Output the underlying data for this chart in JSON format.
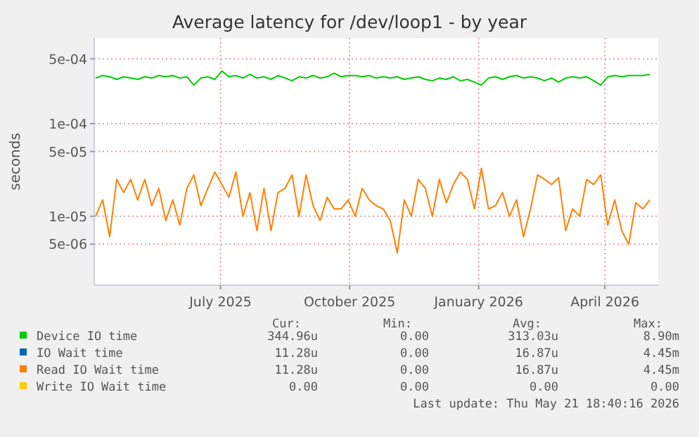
{
  "chart_data": {
    "type": "line",
    "title": "Average latency for /dev/loop1 - by year",
    "ylabel": "seconds",
    "log": "y",
    "grid": true,
    "legend": "bottom",
    "line_style": "solid",
    "marker": "none",
    "x": [
      "2025-04-03",
      "2025-04-08",
      "2025-04-13",
      "2025-04-18",
      "2025-04-23",
      "2025-04-28",
      "2025-05-03",
      "2025-05-08",
      "2025-05-13",
      "2025-05-18",
      "2025-05-23",
      "2025-05-28",
      "2025-06-02",
      "2025-06-07",
      "2025-06-12",
      "2025-06-17",
      "2025-06-22",
      "2025-06-27",
      "2025-07-02",
      "2025-07-07",
      "2025-07-12",
      "2025-07-17",
      "2025-07-22",
      "2025-07-27",
      "2025-08-01",
      "2025-08-06",
      "2025-08-11",
      "2025-08-16",
      "2025-08-21",
      "2025-08-26",
      "2025-08-31",
      "2025-09-05",
      "2025-09-10",
      "2025-09-15",
      "2025-09-20",
      "2025-09-25",
      "2025-09-30",
      "2025-10-05",
      "2025-10-10",
      "2025-10-15",
      "2025-10-20",
      "2025-10-25",
      "2025-10-30",
      "2025-11-04",
      "2025-11-09",
      "2025-11-14",
      "2025-11-19",
      "2025-11-24",
      "2025-11-29",
      "2025-12-04",
      "2025-12-09",
      "2025-12-14",
      "2025-12-19",
      "2025-12-24",
      "2025-12-29",
      "2026-01-03",
      "2026-01-08",
      "2026-01-13",
      "2026-01-18",
      "2026-01-23",
      "2026-01-28",
      "2026-02-02",
      "2026-02-07",
      "2026-02-12",
      "2026-02-17",
      "2026-02-22",
      "2026-02-27",
      "2026-03-04",
      "2026-03-09",
      "2026-03-14",
      "2026-03-19",
      "2026-03-24",
      "2026-03-29",
      "2026-04-03",
      "2026-04-08",
      "2026-04-13",
      "2026-04-18",
      "2026-04-23",
      "2026-04-28",
      "2026-05-03"
    ],
    "xlim": [
      "2025-04-02",
      "2026-05-09"
    ],
    "xticks": [
      {
        "value": "2025-07-01",
        "label": "July 2025"
      },
      {
        "value": "2025-10-01",
        "label": "October 2025"
      },
      {
        "value": "2026-01-01",
        "label": "January 2026"
      },
      {
        "value": "2026-04-01",
        "label": "April 2026"
      }
    ],
    "ylim": [
      1.8e-06,
      0.00084
    ],
    "yticks": [
      {
        "value": 5e-06,
        "label": "5e-06"
      },
      {
        "value": 1e-05,
        "label": "1e-05"
      },
      {
        "value": 5e-05,
        "label": "5e-05"
      },
      {
        "value": 0.0001,
        "label": "1e-04"
      },
      {
        "value": 0.0005,
        "label": "5e-04"
      }
    ],
    "series": [
      {
        "name": "Device IO time",
        "color": "#00cc00",
        "values": [
          0.00031,
          0.00033,
          0.00032,
          0.0003,
          0.00032,
          0.00031,
          0.0003,
          0.00032,
          0.00031,
          0.00033,
          0.00032,
          0.00033,
          0.00031,
          0.00032,
          0.00026,
          0.00031,
          0.00032,
          0.0003,
          0.00037,
          0.00032,
          0.00033,
          0.00031,
          0.00034,
          0.00031,
          0.00032,
          0.0003,
          0.00033,
          0.00031,
          0.00029,
          0.00032,
          0.00031,
          0.00033,
          0.00031,
          0.00032,
          0.00035,
          0.00032,
          0.00033,
          0.00033,
          0.00032,
          0.00033,
          0.00031,
          0.00032,
          0.00031,
          0.00032,
          0.0003,
          0.00031,
          0.00032,
          0.0003,
          0.00029,
          0.00031,
          0.0003,
          0.00032,
          0.00029,
          0.0003,
          0.00028,
          0.00026,
          0.00031,
          0.00032,
          0.0003,
          0.00032,
          0.00033,
          0.00031,
          0.00032,
          0.00031,
          0.00029,
          0.00031,
          0.00028,
          0.00031,
          0.00032,
          0.00031,
          0.00032,
          0.00029,
          0.00026,
          0.00032,
          0.00033,
          0.00032,
          0.00033,
          0.00033,
          0.00033,
          0.00034
        ]
      },
      {
        "name": "IO Wait time",
        "color": "#0066b3",
        "values": [
          null,
          null,
          null,
          null,
          null,
          null,
          null,
          null,
          null,
          null,
          null,
          null,
          null,
          null,
          null,
          null,
          null,
          null,
          null,
          null,
          null,
          null,
          null,
          null,
          null,
          null,
          null,
          null,
          null,
          null,
          null,
          null,
          null,
          null,
          null,
          null,
          null,
          null,
          null,
          null,
          null,
          null,
          null,
          null,
          null,
          null,
          null,
          null,
          null,
          null,
          null,
          null,
          null,
          null,
          null,
          null,
          null,
          null,
          null,
          null,
          null,
          null,
          null,
          null,
          null,
          null,
          null,
          null,
          null,
          null,
          null,
          null,
          null,
          null,
          null,
          null,
          null,
          null,
          null,
          null
        ]
      },
      {
        "name": "Read IO Wait time",
        "color": "#ff8000",
        "values": [
          1e-05,
          1.5e-05,
          6e-06,
          2.5e-05,
          1.8e-05,
          2.5e-05,
          1.5e-05,
          2.5e-05,
          1.3e-05,
          2e-05,
          9e-06,
          1.5e-05,
          8e-06,
          2e-05,
          2.8e-05,
          1.3e-05,
          2e-05,
          3e-05,
          2.2e-05,
          1.6e-05,
          3e-05,
          1e-05,
          1.8e-05,
          7e-06,
          2e-05,
          7e-06,
          1.8e-05,
          2e-05,
          2.8e-05,
          1e-05,
          2.8e-05,
          1.3e-05,
          9e-06,
          1.6e-05,
          1.2e-05,
          1.2e-05,
          1.5e-05,
          1e-05,
          2e-05,
          1.5e-05,
          1.3e-05,
          1.2e-05,
          9e-06,
          4e-06,
          1.5e-05,
          1e-05,
          2.5e-05,
          2e-05,
          1e-05,
          2.5e-05,
          1.4e-05,
          2.2e-05,
          3e-05,
          2.5e-05,
          1.2e-05,
          3.3e-05,
          1.2e-05,
          1.3e-05,
          1.8e-05,
          1e-05,
          1.5e-05,
          6e-06,
          1.2e-05,
          2.8e-05,
          2.5e-05,
          2.2e-05,
          2.6e-05,
          7e-06,
          1.2e-05,
          1e-05,
          2.5e-05,
          2.2e-05,
          2.8e-05,
          8e-06,
          1.5e-05,
          7e-06,
          5e-06,
          1.4e-05,
          1.2e-05,
          1.5e-05
        ]
      },
      {
        "name": "Write IO Wait time",
        "color": "#ffcc00",
        "values": [
          null,
          null,
          null,
          null,
          null,
          null,
          null,
          null,
          null,
          null,
          null,
          null,
          null,
          null,
          null,
          null,
          null,
          null,
          null,
          null,
          null,
          null,
          null,
          null,
          null,
          null,
          null,
          null,
          null,
          null,
          null,
          null,
          null,
          null,
          null,
          null,
          null,
          null,
          null,
          null,
          null,
          null,
          null,
          null,
          null,
          null,
          null,
          null,
          null,
          null,
          null,
          null,
          null,
          null,
          null,
          null,
          null,
          null,
          null,
          null,
          null,
          null,
          null,
          null,
          null,
          null,
          null,
          null,
          null,
          null,
          null,
          null,
          null,
          null,
          null,
          null,
          null,
          null,
          null,
          null
        ]
      }
    ],
    "annotations": [
      "Cur:",
      "Min:",
      "Avg:",
      "Max:",
      "344.96u",
      "0.00",
      "313.03u",
      "8.90m",
      "11.28u",
      "0.00",
      "16.87u",
      "4.45m",
      "11.28u",
      "0.00",
      "16.87u",
      "4.45m",
      "0.00",
      "0.00",
      "0.00",
      "0.00",
      "Last update: Thu May 21 18:40:16 2026"
    ]
  }
}
